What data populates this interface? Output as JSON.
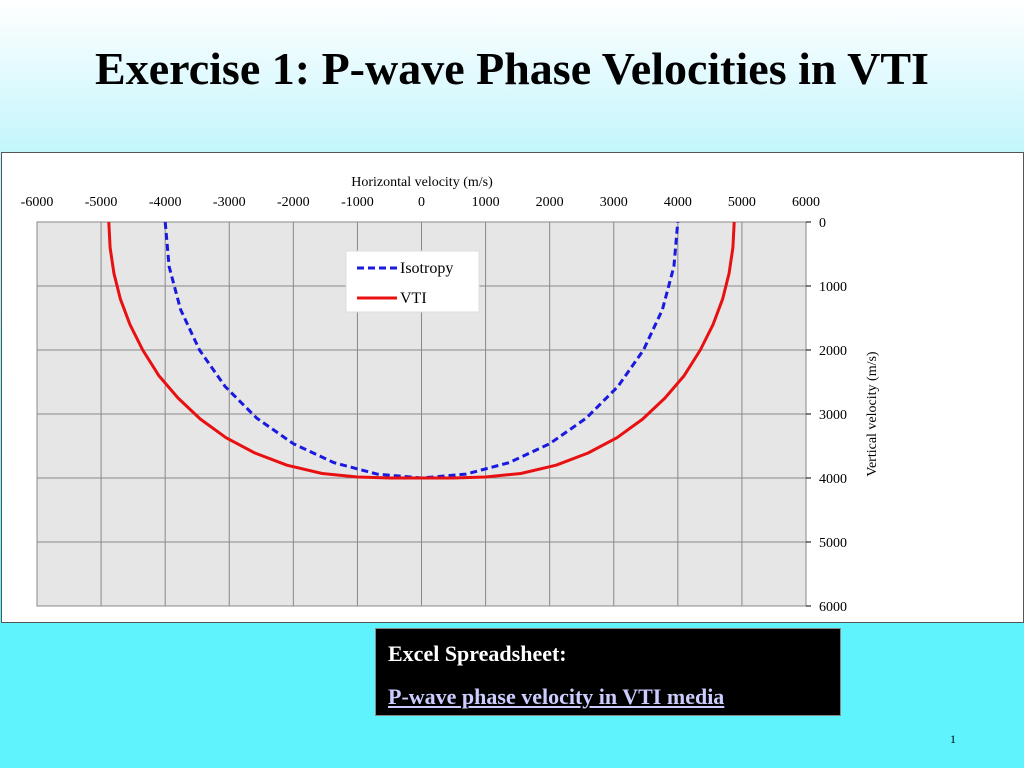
{
  "slide": {
    "title": "Exercise 1: P-wave Phase Velocities in VTI",
    "page_number": "1"
  },
  "callout": {
    "label": "Excel Spreadsheet:",
    "link_text": "P-wave phase velocity in VTI  media"
  },
  "colors": {
    "isotropy": "#1a1adf",
    "vti": "#e81010",
    "plot_area": "#e6e6e6",
    "grid": "#888888"
  },
  "chart_data": {
    "type": "line",
    "xlabel": "Horizontal velocity (m/s)",
    "ylabel": "Vertical velocity (m/s)",
    "xlim": [
      -6000,
      6000
    ],
    "ylim": [
      0,
      6000
    ],
    "y_inverted": true,
    "x_axis_position": "top",
    "y_axis_position": "right",
    "xticks": [
      "-6000",
      "-5000",
      "-4000",
      "-3000",
      "-2000",
      "-1000",
      "0",
      "1000",
      "2000",
      "3000",
      "4000",
      "5000",
      "6000"
    ],
    "yticks": [
      "0",
      "1000",
      "2000",
      "3000",
      "4000",
      "5000",
      "6000"
    ],
    "grid": true,
    "legend_position": "top-center",
    "series": [
      {
        "name": "Isotropy",
        "style": "dashed",
        "x": [
          -4000,
          -3939,
          -3759,
          -3464,
          -3064,
          -2571,
          -2000,
          -1368,
          -695,
          0,
          695,
          1368,
          2000,
          2571,
          3064,
          3464,
          3759,
          3939,
          4000
        ],
        "y": [
          0,
          695,
          1368,
          2000,
          2571,
          3064,
          3464,
          3759,
          3939,
          4000,
          3939,
          3759,
          3464,
          3064,
          2571,
          2000,
          1368,
          695,
          0
        ]
      },
      {
        "name": "VTI",
        "style": "solid",
        "x": [
          -4880,
          -4860,
          -4800,
          -4700,
          -4550,
          -4350,
          -4100,
          -3800,
          -3450,
          -3050,
          -2600,
          -2100,
          -1550,
          -1000,
          -500,
          0,
          500,
          1000,
          1550,
          2100,
          2600,
          3050,
          3450,
          3800,
          4100,
          4350,
          4550,
          4700,
          4800,
          4860,
          4880
        ],
        "y": [
          0,
          400,
          800,
          1200,
          1600,
          2000,
          2400,
          2750,
          3080,
          3370,
          3610,
          3800,
          3930,
          3985,
          4000,
          4000,
          4000,
          3985,
          3930,
          3800,
          3610,
          3370,
          3080,
          2750,
          2400,
          2000,
          1600,
          1200,
          800,
          400,
          0
        ]
      }
    ]
  }
}
